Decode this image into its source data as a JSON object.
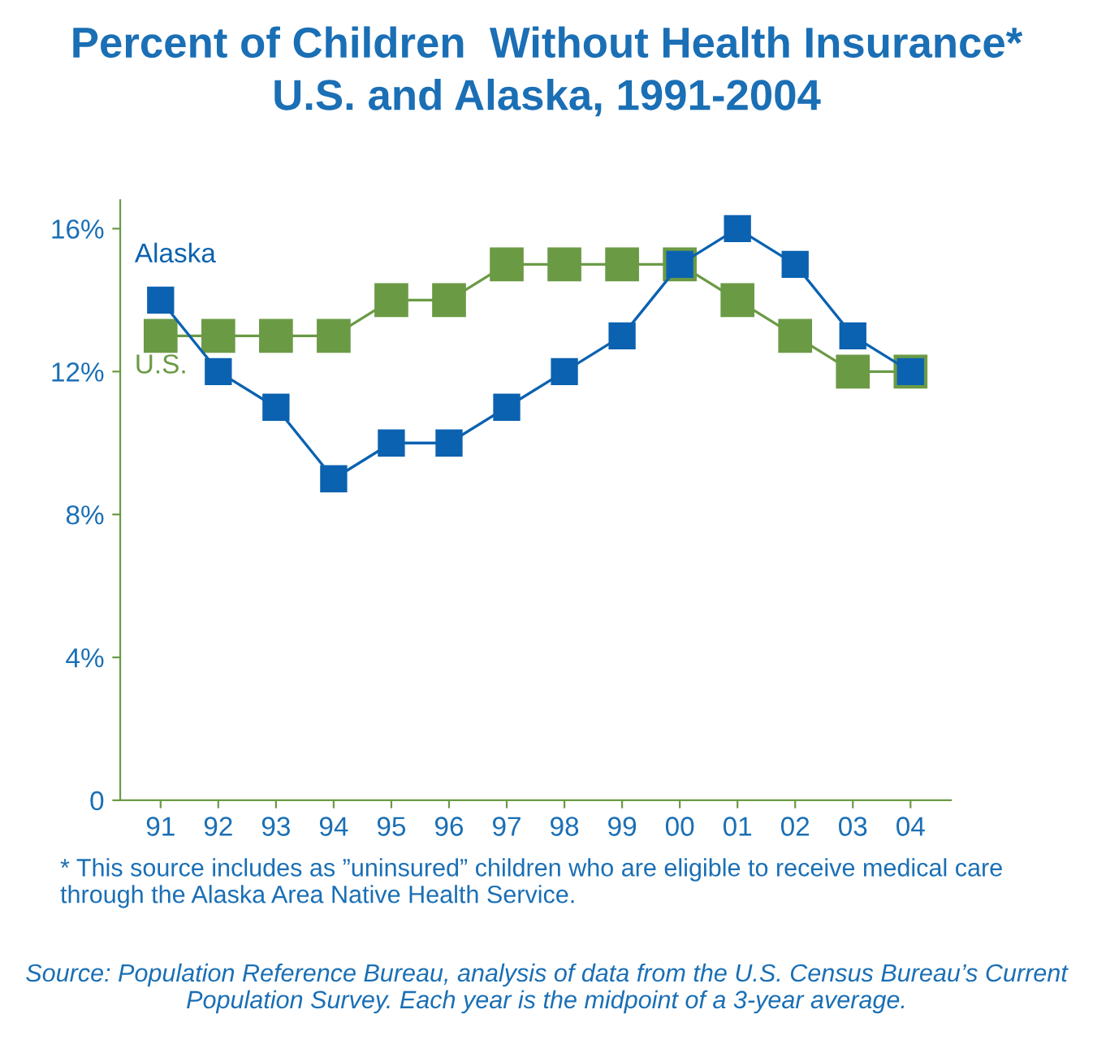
{
  "chart_data": {
    "type": "line",
    "title": "Percent of Children  Without Health Insurance*\nU.S. and Alaska, 1991-2004",
    "categories": [
      "91",
      "92",
      "93",
      "94",
      "95",
      "96",
      "97",
      "98",
      "99",
      "00",
      "01",
      "02",
      "03",
      "04"
    ],
    "series": [
      {
        "name": "Alaska",
        "color": "#0b62b0",
        "values": [
          14,
          12,
          11,
          9,
          10,
          10,
          11,
          12,
          13,
          15,
          16,
          15,
          13,
          12
        ]
      },
      {
        "name": "U.S.",
        "color": "#6b9a45",
        "values": [
          13,
          13,
          13,
          13,
          14,
          14,
          15,
          15,
          15,
          15,
          14,
          13,
          12,
          12
        ]
      }
    ],
    "ylim": [
      0,
      16.8
    ],
    "yticks": [
      {
        "value": 0,
        "label": "0"
      },
      {
        "value": 4,
        "label": "4%"
      },
      {
        "value": 8,
        "label": "8%"
      },
      {
        "value": 12,
        "label": "12%"
      },
      {
        "value": 16,
        "label": "16%"
      }
    ],
    "grid": false,
    "legend": false,
    "marker": "square",
    "line_style": "solid",
    "annotations": [
      "* This source includes as ”uninsured” children who are eligible to receive medical care through the Alaska Area Native Health Service.",
      "Source: Population Reference Bureau, analysis of data from the U.S. Census Bureau’s Current Population Survey. Each year is the midpoint of a 3-year average."
    ]
  }
}
